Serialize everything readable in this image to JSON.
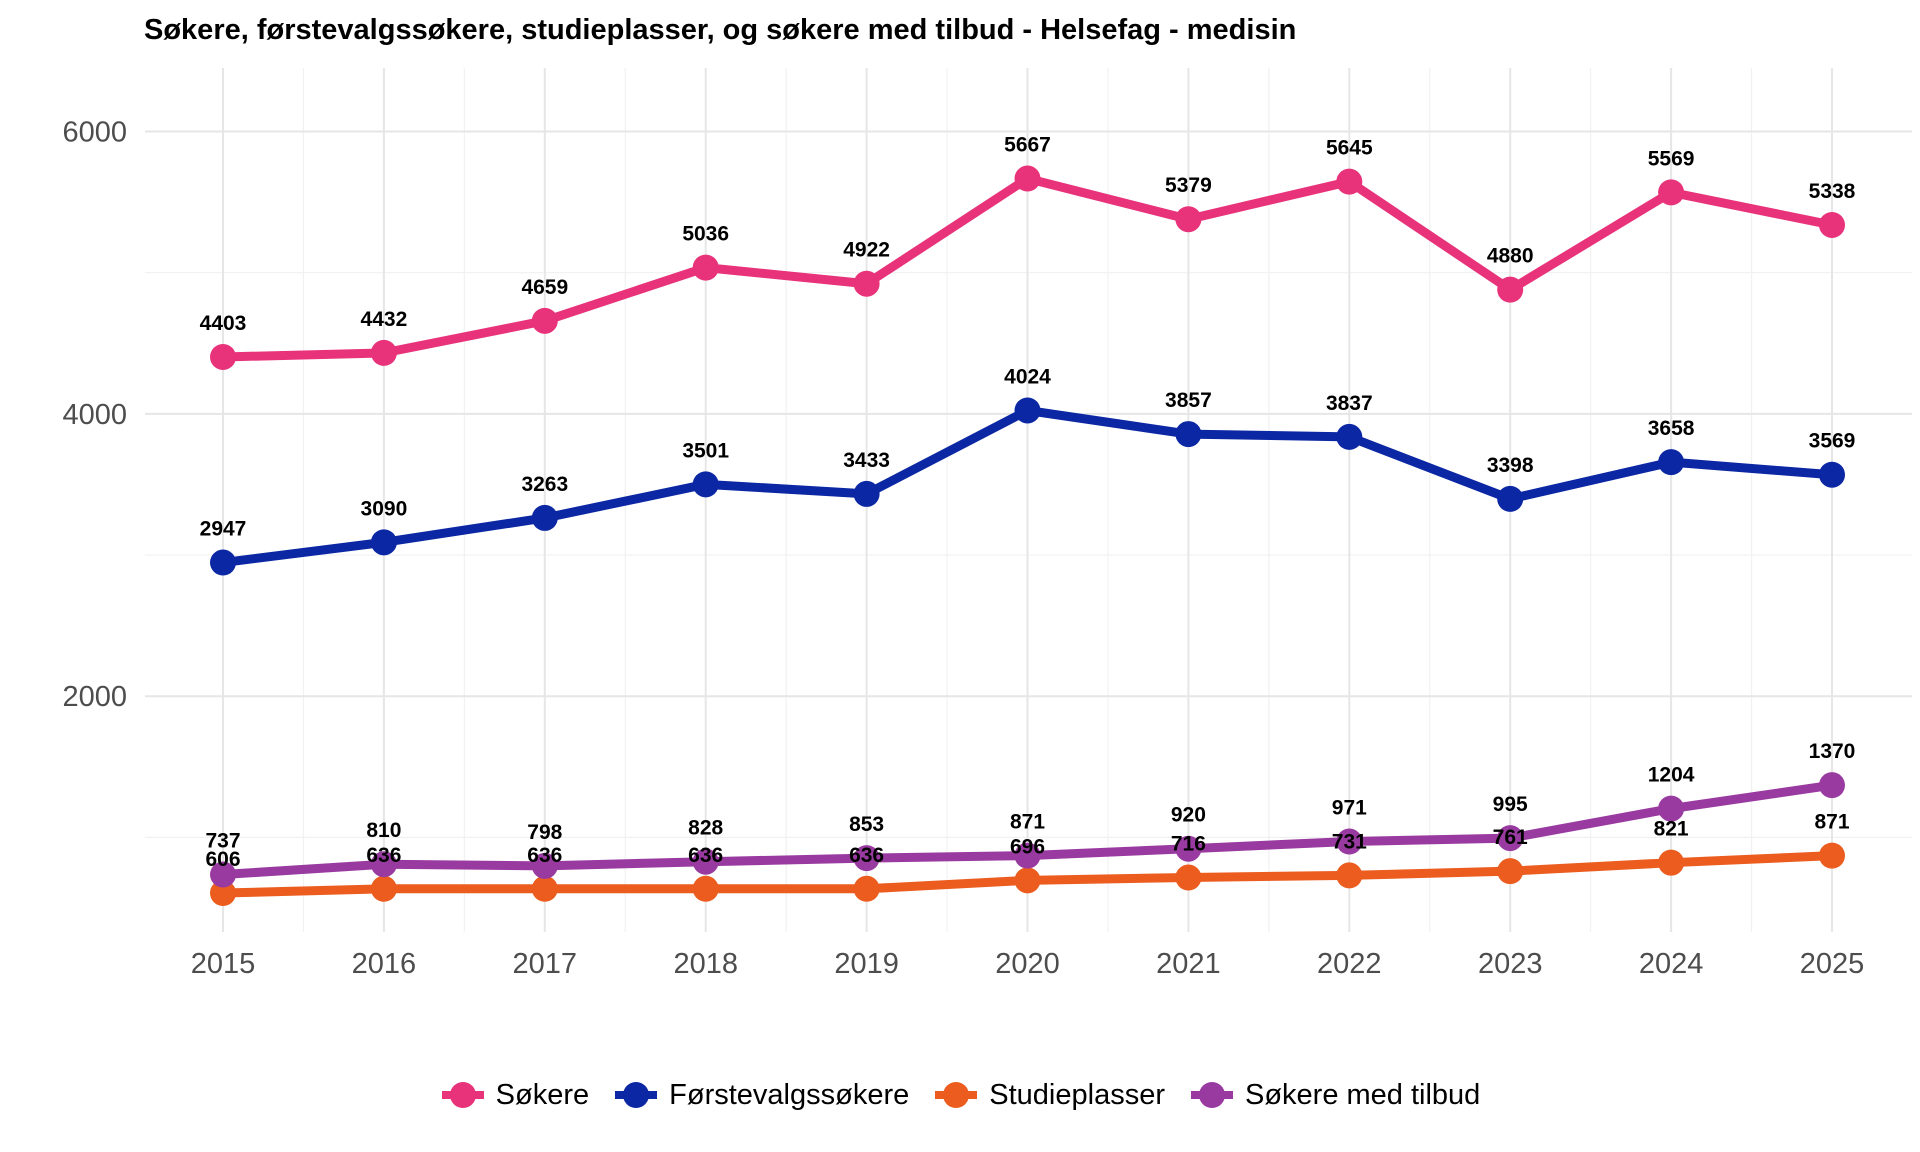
{
  "chart_data": {
    "type": "line",
    "title": "Søkere, førstevalgssøkere, studieplasser, og søkere med tilbud - Helsefag - medisin",
    "xlabel": "",
    "ylabel": "",
    "x": [
      "2015",
      "2016",
      "2017",
      "2018",
      "2019",
      "2020",
      "2021",
      "2022",
      "2023",
      "2024",
      "2025"
    ],
    "y_ticks": [
      "2000",
      "4000",
      "6000"
    ],
    "ylim": [
      330,
      6450
    ],
    "grid": true,
    "legend_position": "bottom",
    "series": [
      {
        "name": "Søkere",
        "color": "#E8327A",
        "values": [
          4403,
          4432,
          4659,
          5036,
          4922,
          5667,
          5379,
          5645,
          4880,
          5569,
          5338
        ]
      },
      {
        "name": "Førstevalgssøkere",
        "color": "#0B27A3",
        "values": [
          2947,
          3090,
          3263,
          3501,
          3433,
          4024,
          3857,
          3837,
          3398,
          3658,
          3569
        ]
      },
      {
        "name": "Studieplasser",
        "color": "#EB5C1E",
        "values": [
          606,
          636,
          636,
          636,
          636,
          696,
          716,
          731,
          761,
          821,
          871
        ]
      },
      {
        "name": "Søkere med tilbud",
        "color": "#993AA0",
        "values": [
          737,
          810,
          798,
          828,
          853,
          871,
          920,
          971,
          995,
          1204,
          1370
        ]
      }
    ]
  }
}
